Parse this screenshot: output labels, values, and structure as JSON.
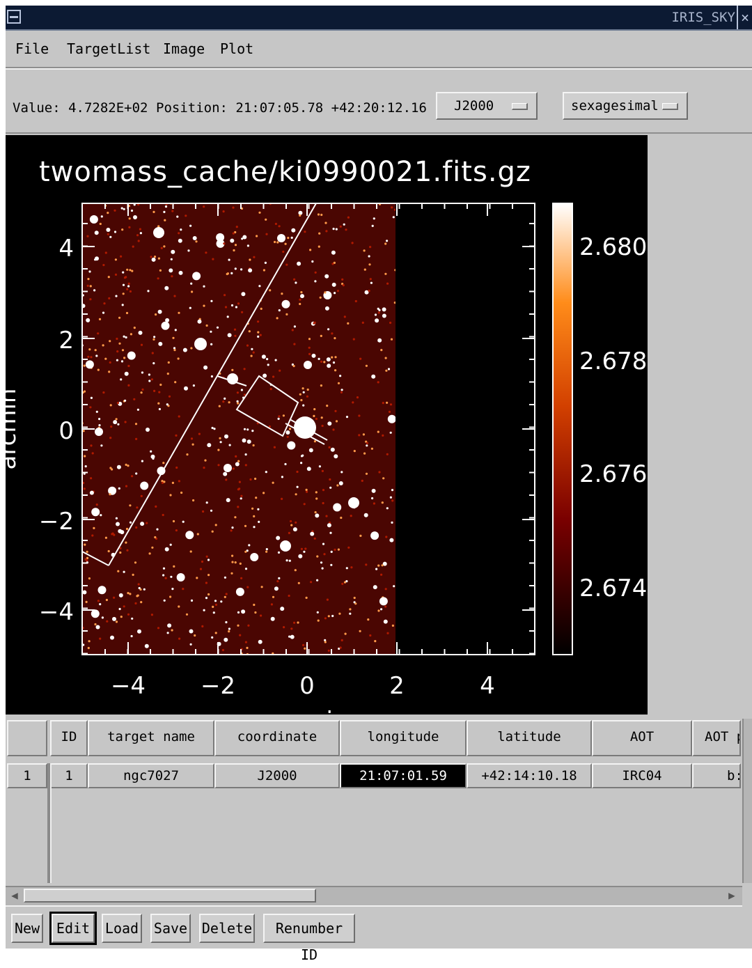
{
  "window": {
    "title": "IRIS_SKY"
  },
  "menu": [
    "File",
    "TargetList",
    "Image",
    "Plot"
  ],
  "status": {
    "value_text": "Value: 4.7282E+02",
    "position_text": "Position: 21:07:05.78 +42:20:12.16",
    "coord_system": "J2000",
    "coord_format": "sexagesimal"
  },
  "plot": {
    "title": "twomass_cache/ki0990021.fits.gz",
    "xlabel": "arcmin",
    "ylabel": "arcmin",
    "x_ticks": [
      "−4",
      "−2",
      "0",
      "2",
      "4"
    ],
    "y_ticks": [
      "4",
      "2",
      "0",
      "−2",
      "−4"
    ],
    "colorbar_ticks": [
      "2.680",
      "2.678",
      "2.676",
      "2.674"
    ],
    "colormap": [
      "#000000",
      "#7a0000",
      "#d24000",
      "#ff8c1a",
      "#ffffff"
    ],
    "background": "#000000"
  },
  "table": {
    "columns": [
      "ID",
      "target name",
      "coordinate",
      "longitude",
      "latitude",
      "AOT",
      "AOT p"
    ],
    "rows": [
      {
        "row_no": "1",
        "id": "1",
        "target_name": "ngc7027",
        "coordinate": "J2000",
        "longitude": "21:07:01.59",
        "latitude": "+42:14:10.18",
        "aot": "IRC04",
        "aot_p": "b:"
      }
    ]
  },
  "buttons": [
    "New",
    "Edit",
    "Load",
    "Save",
    "Delete",
    "Renumber ID"
  ]
}
